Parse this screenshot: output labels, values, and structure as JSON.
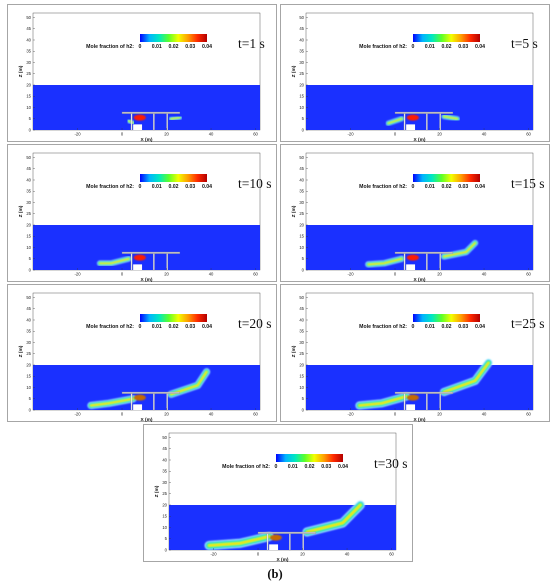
{
  "figure_label": "(b)",
  "colors": {
    "domain": "#1a30ff",
    "colormap": [
      "#0000ff",
      "#00b4ff",
      "#00e8c0",
      "#5cff2a",
      "#f2ff00",
      "#ffa000",
      "#ff2a00",
      "#b30000"
    ],
    "structure": "#c8c8c8"
  },
  "chart_data": [
    {
      "type": "heatmap",
      "time": "t=1 s",
      "colorbar": {
        "label": "Mole fraction of h2:",
        "ticks": [
          "0",
          "0.01",
          "0.02",
          "0.03",
          "0.04"
        ],
        "range": [
          0,
          0.04
        ]
      },
      "xlabel": "X (m)",
      "ylabel": "Z (m)",
      "xticks": [
        "-20",
        "0",
        "20",
        "40",
        "60"
      ],
      "yticks": [
        "0",
        "5",
        "10",
        "15",
        "20",
        "25",
        "30",
        "35",
        "40",
        "45",
        "50"
      ],
      "xlim": [
        -40,
        62
      ],
      "ylim": [
        0,
        52
      ],
      "domain_top": 20
    },
    {
      "type": "heatmap",
      "time": "t=5 s",
      "colorbar": {
        "label": "Mole fraction of h2:",
        "ticks": [
          "0",
          "0.01",
          "0.02",
          "0.03",
          "0.04"
        ],
        "range": [
          0,
          0.04
        ]
      },
      "xlabel": "X (m)",
      "ylabel": "Z (m)",
      "xticks": [
        "-20",
        "0",
        "20",
        "40",
        "60"
      ],
      "yticks": [
        "0",
        "5",
        "10",
        "15",
        "20",
        "25",
        "30",
        "35",
        "40",
        "45",
        "50"
      ],
      "xlim": [
        -40,
        62
      ],
      "ylim": [
        0,
        52
      ],
      "domain_top": 20
    },
    {
      "type": "heatmap",
      "time": "t=10 s",
      "colorbar": {
        "label": "Mole fraction of h2:",
        "ticks": [
          "0",
          "0.01",
          "0.02",
          "0.03",
          "0.04"
        ],
        "range": [
          0,
          0.04
        ]
      },
      "xlabel": "X (m)",
      "ylabel": "Z (m)",
      "xticks": [
        "-20",
        "0",
        "20",
        "40",
        "60"
      ],
      "yticks": [
        "0",
        "5",
        "10",
        "15",
        "20",
        "25",
        "30",
        "35",
        "40",
        "45",
        "50"
      ],
      "xlim": [
        -40,
        62
      ],
      "ylim": [
        0,
        52
      ],
      "domain_top": 20
    },
    {
      "type": "heatmap",
      "time": "t=15 s",
      "colorbar": {
        "label": "Mole fraction of h2:",
        "ticks": [
          "0",
          "0.01",
          "0.02",
          "0.03",
          "0.04"
        ],
        "range": [
          0,
          0.04
        ]
      },
      "xlabel": "X (m)",
      "ylabel": "Z (m)",
      "xticks": [
        "-20",
        "0",
        "20",
        "40",
        "60"
      ],
      "yticks": [
        "0",
        "5",
        "10",
        "15",
        "20",
        "25",
        "30",
        "35",
        "40",
        "45",
        "50"
      ],
      "xlim": [
        -40,
        62
      ],
      "ylim": [
        0,
        52
      ],
      "domain_top": 20
    },
    {
      "type": "heatmap",
      "time": "t=20 s",
      "colorbar": {
        "label": "Mole fraction of h2:",
        "ticks": [
          "0",
          "0.01",
          "0.02",
          "0.03",
          "0.04"
        ],
        "range": [
          0,
          0.04
        ]
      },
      "xlabel": "X (m)",
      "ylabel": "Z (m)",
      "xticks": [
        "-20",
        "0",
        "20",
        "40",
        "60"
      ],
      "yticks": [
        "0",
        "5",
        "10",
        "15",
        "20",
        "25",
        "30",
        "35",
        "40",
        "45",
        "50"
      ],
      "xlim": [
        -40,
        62
      ],
      "ylim": [
        0,
        52
      ],
      "domain_top": 20
    },
    {
      "type": "heatmap",
      "time": "t=25 s",
      "colorbar": {
        "label": "Mole fraction of h2:",
        "ticks": [
          "0",
          "0.01",
          "0.02",
          "0.03",
          "0.04"
        ],
        "range": [
          0,
          0.04
        ]
      },
      "xlabel": "X (m)",
      "ylabel": "Z (m)",
      "xticks": [
        "-20",
        "0",
        "20",
        "40",
        "60"
      ],
      "yticks": [
        "0",
        "5",
        "10",
        "15",
        "20",
        "25",
        "30",
        "35",
        "40",
        "45",
        "50"
      ],
      "xlim": [
        -40,
        62
      ],
      "ylim": [
        0,
        52
      ],
      "domain_top": 20
    },
    {
      "type": "heatmap",
      "time": "t=30 s",
      "colorbar": {
        "label": "Mole fraction of h2:",
        "ticks": [
          "0",
          "0.01",
          "0.02",
          "0.03",
          "0.04"
        ],
        "range": [
          0,
          0.04
        ]
      },
      "xlabel": "X (m)",
      "ylabel": "Z (m)",
      "xticks": [
        "-20",
        "0",
        "20",
        "40",
        "60"
      ],
      "yticks": [
        "0",
        "5",
        "10",
        "15",
        "20",
        "25",
        "30",
        "35",
        "40",
        "45",
        "50"
      ],
      "xlim": [
        -40,
        62
      ],
      "ylim": [
        0,
        52
      ],
      "domain_top": 20
    }
  ]
}
